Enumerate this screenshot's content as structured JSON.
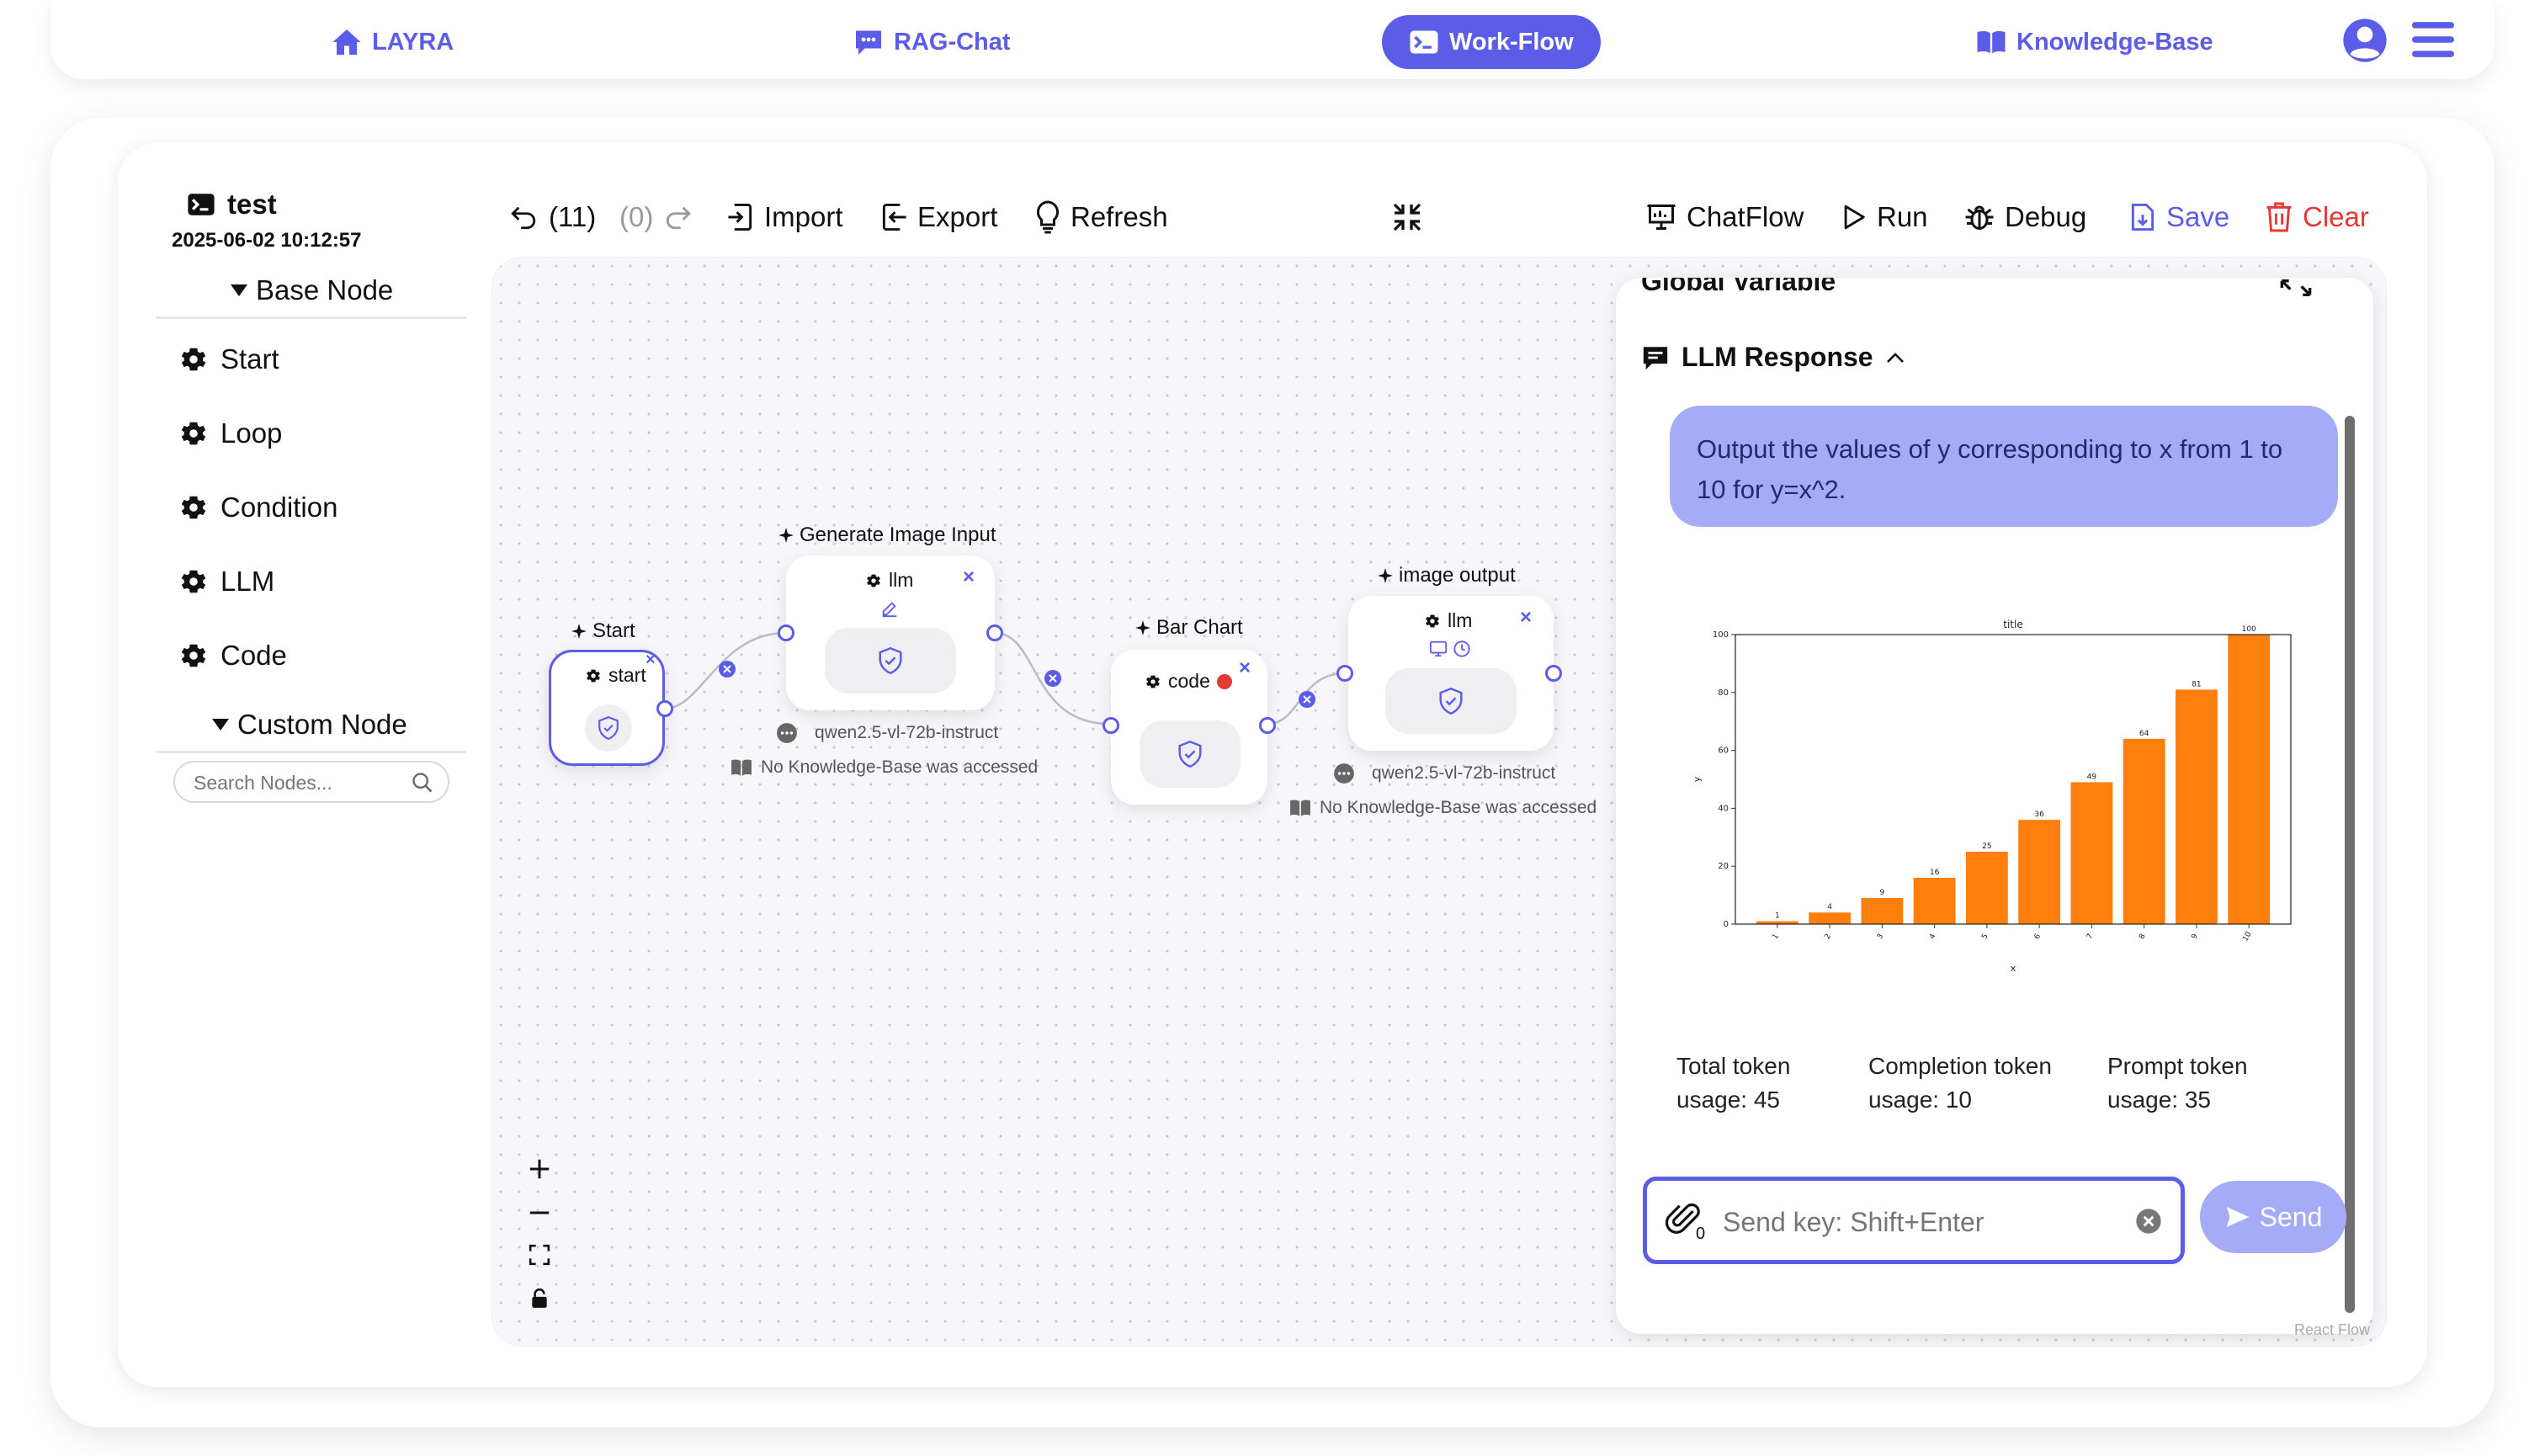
{
  "nav": {
    "home": "LAYRA",
    "chat": "RAG-Chat",
    "workflow": "Work-Flow",
    "kb": "Knowledge-Base"
  },
  "workflow": {
    "name": "test",
    "timestamp": "2025-06-02 10:12:57"
  },
  "sidebar": {
    "base_header": "Base Node",
    "items": [
      "Start",
      "Loop",
      "Condition",
      "LLM",
      "Code"
    ],
    "custom_header": "Custom Node",
    "search_placeholder": "Search Nodes..."
  },
  "toolbar": {
    "undo": "(11)",
    "redo": "(0)",
    "import": "Import",
    "export": "Export",
    "refresh": "Refresh",
    "chatflow": "ChatFlow",
    "run": "Run",
    "debug": "Debug",
    "save": "Save",
    "clear": "Clear"
  },
  "nodes": {
    "start": {
      "title": "Start",
      "label": "start"
    },
    "gen": {
      "title": "Generate Image Input",
      "label": "llm",
      "model": "qwen2.5-vl-72b-instruct",
      "kb": "No Knowledge-Base was accessed"
    },
    "bar": {
      "title": "Bar Chart",
      "label": "code"
    },
    "img": {
      "title": "image output",
      "label": "llm",
      "model": "qwen2.5-vl-72b-instruct",
      "kb": "No Knowledge-Base was accessed"
    }
  },
  "panel": {
    "global_var": "Global Variable",
    "response_title": "LLM Response",
    "user_message": "Output the values of y corresponding to x from 1 to 10 for y=x^2.",
    "total_token": "Total token usage: 45",
    "completion_token": "Completion token usage: 10",
    "prompt_token": "Prompt token usage: 35",
    "attach_count": "0",
    "input_placeholder": "Send key: Shift+Enter",
    "send": "Send"
  },
  "canvas": {
    "attribution": "React Flow"
  },
  "colors": {
    "accent": "#5b5ce8",
    "bar": "#ff7f0e",
    "bubble": "#a5abf7",
    "danger": "#e53935"
  },
  "chart_data": {
    "type": "bar",
    "title": "title",
    "xlabel": "x",
    "ylabel": "y",
    "categories": [
      "1",
      "2",
      "3",
      "4",
      "5",
      "6",
      "7",
      "8",
      "9",
      "10"
    ],
    "values": [
      1,
      4,
      9,
      16,
      25,
      36,
      49,
      64,
      81,
      100
    ],
    "ylim": [
      0,
      100
    ],
    "yticks": [
      0,
      20,
      40,
      60,
      80,
      100
    ]
  }
}
